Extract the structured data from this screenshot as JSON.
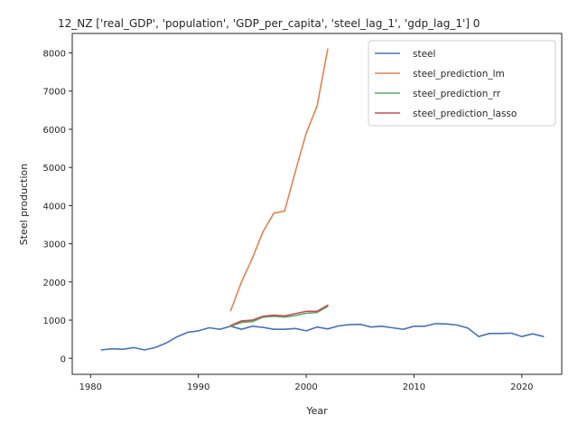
{
  "chart_data": {
    "type": "line",
    "title": "12_NZ ['real_GDP', 'population', 'GDP_per_capita', 'steel_lag_1', 'gdp_lag_1'] 0",
    "xlabel": "Year",
    "ylabel": "Steel production",
    "xlim": [
      1978.3,
      2023.7
    ],
    "ylim": [
      -420,
      8510
    ],
    "xticks": [
      1980,
      1990,
      2000,
      2010,
      2020
    ],
    "yticks": [
      0,
      1000,
      2000,
      3000,
      4000,
      5000,
      6000,
      7000,
      8000
    ],
    "legend_position": "top-right",
    "grid": false,
    "series": [
      {
        "name": "steel",
        "color": "#4c72b0",
        "x": [
          1981,
          1982,
          1983,
          1984,
          1985,
          1986,
          1987,
          1988,
          1989,
          1990,
          1991,
          1992,
          1993,
          1994,
          1995,
          1996,
          1997,
          1998,
          1999,
          2000,
          2001,
          2002,
          2003,
          2004,
          2005,
          2006,
          2007,
          2008,
          2009,
          2010,
          2011,
          2012,
          2013,
          2014,
          2015,
          2016,
          2017,
          2018,
          2019,
          2020,
          2021,
          2022
        ],
        "y": [
          220,
          250,
          235,
          280,
          220,
          280,
          400,
          560,
          680,
          720,
          800,
          760,
          840,
          760,
          840,
          810,
          760,
          760,
          780,
          720,
          820,
          770,
          850,
          880,
          890,
          820,
          840,
          800,
          760,
          840,
          840,
          910,
          900,
          870,
          790,
          570,
          650,
          650,
          660,
          570,
          640,
          570
        ]
      },
      {
        "name": "steel_prediction_lm",
        "color": "#dd8452",
        "x": [
          1993,
          1994,
          1995,
          1996,
          1997,
          1998,
          1999,
          2000,
          2001,
          2002
        ],
        "y": [
          1250,
          2000,
          2620,
          3320,
          3800,
          3860,
          4900,
          5900,
          6600,
          8100
        ]
      },
      {
        "name": "steel_prediction_rr",
        "color": "#55a868",
        "x": [
          1993,
          1994,
          1995,
          1996,
          1997,
          1998,
          1999,
          2000,
          2001,
          2002
        ],
        "y": [
          840,
          940,
          960,
          1080,
          1100,
          1080,
          1120,
          1180,
          1200,
          1360
        ]
      },
      {
        "name": "steel_prediction_lasso",
        "color": "#c44e52",
        "x": [
          1993,
          1994,
          1995,
          1996,
          1997,
          1998,
          1999,
          2000,
          2001,
          2002
        ],
        "y": [
          860,
          980,
          1000,
          1100,
          1130,
          1110,
          1170,
          1230,
          1230,
          1390
        ]
      }
    ]
  }
}
